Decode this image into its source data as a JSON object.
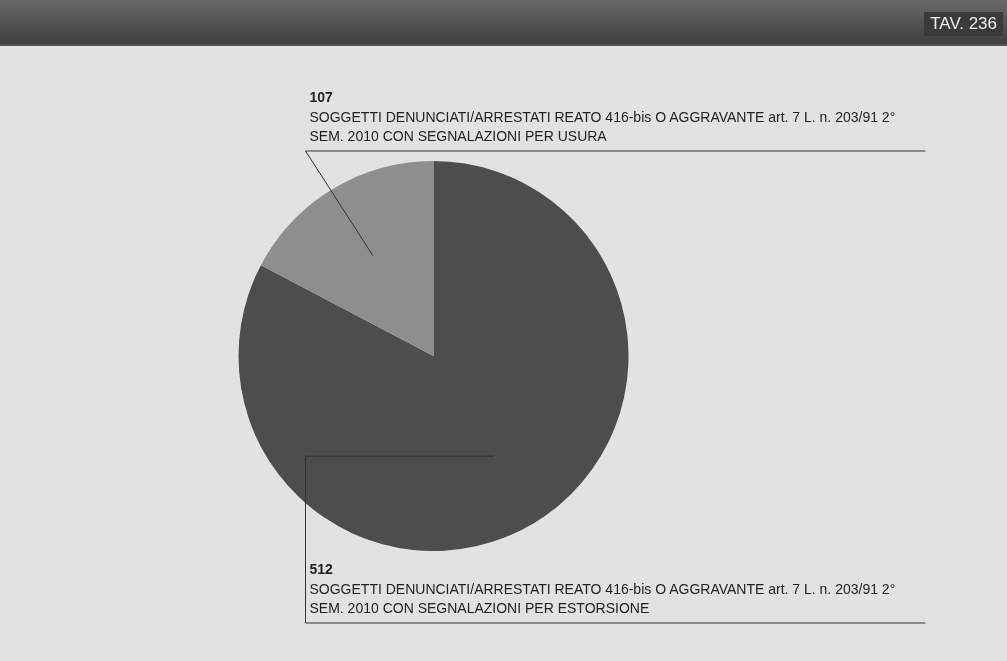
{
  "chart_data": {
    "type": "pie",
    "categories": [
      "SOGGETTI DENUNCIATI/ARRESTATI REATO 416-bis O AGGRAVANTE art. 7 L. n. 203/91 2° SEM. 2010 CON SEGNALAZIONI PER ESTORSIONE",
      "SOGGETTI DENUNCIATI/ARRESTATI REATO 416-bis O AGGRAVANTE art. 7 L. n. 203/91 2° SEM. 2010 CON SEGNALAZIONI PER USURA"
    ],
    "values": [
      512,
      107
    ],
    "colors": [
      "#4d4d4d",
      "#8e8e8e"
    ],
    "data_labels": true,
    "legend": false,
    "annotations": [
      "TAV. 236"
    ]
  }
}
